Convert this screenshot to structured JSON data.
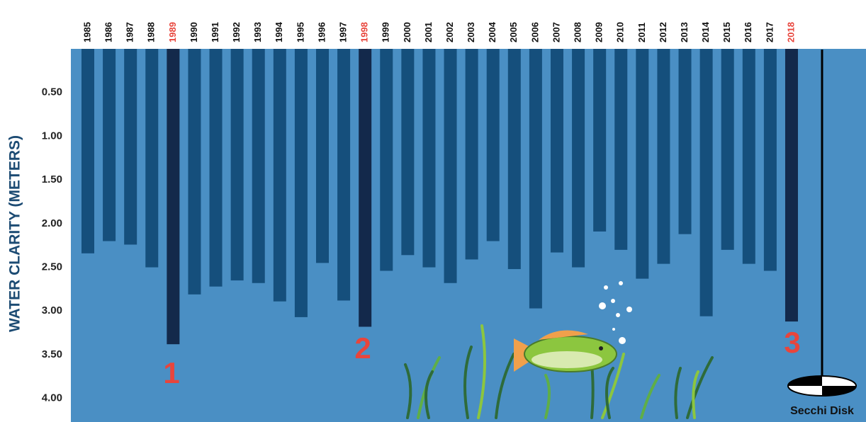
{
  "chart_data": {
    "type": "bar",
    "orientation": "hanging",
    "y_inverted": true,
    "ylabel": "WATER CLARITY (METERS)",
    "categories": [
      "1985",
      "1986",
      "1987",
      "1988",
      "1989",
      "1990",
      "1991",
      "1992",
      "1993",
      "1994",
      "1995",
      "1996",
      "1997",
      "1998",
      "1999",
      "2000",
      "2001",
      "2002",
      "2003",
      "2004",
      "2005",
      "2006",
      "2007",
      "2008",
      "2009",
      "2010",
      "2011",
      "2012",
      "2013",
      "2014",
      "2015",
      "2016",
      "2017",
      "2018"
    ],
    "values": [
      2.34,
      2.2,
      2.24,
      2.5,
      3.38,
      2.81,
      2.72,
      2.65,
      2.68,
      2.89,
      3.07,
      2.45,
      2.88,
      3.18,
      2.54,
      2.36,
      2.5,
      2.68,
      2.41,
      2.2,
      2.52,
      2.97,
      2.33,
      2.5,
      2.09,
      2.3,
      2.63,
      2.46,
      2.12,
      3.06,
      2.3,
      2.46,
      2.54,
      3.12
    ],
    "colors": [
      "#154f7c",
      "#154f7c",
      "#154f7c",
      "#154f7c",
      "#13294b",
      "#154f7c",
      "#154f7c",
      "#154f7c",
      "#154f7c",
      "#154f7c",
      "#154f7c",
      "#154f7c",
      "#154f7c",
      "#13294b",
      "#154f7c",
      "#154f7c",
      "#154f7c",
      "#154f7c",
      "#154f7c",
      "#154f7c",
      "#154f7c",
      "#154f7c",
      "#154f7c",
      "#154f7c",
      "#154f7c",
      "#154f7c",
      "#154f7c",
      "#154f7c",
      "#154f7c",
      "#154f7c",
      "#154f7c",
      "#154f7c",
      "#154f7c",
      "#13294b"
    ],
    "label_colors": [
      "#111",
      "#111",
      "#111",
      "#111",
      "#e8453c",
      "#111",
      "#111",
      "#111",
      "#111",
      "#111",
      "#111",
      "#111",
      "#111",
      "#e8453c",
      "#111",
      "#111",
      "#111",
      "#111",
      "#111",
      "#111",
      "#111",
      "#111",
      "#111",
      "#111",
      "#111",
      "#111",
      "#111",
      "#111",
      "#111",
      "#111",
      "#111",
      "#111",
      "#111",
      "#e8453c"
    ],
    "ylim": [
      0,
      4.27
    ],
    "yticks": [
      {
        "value": 0.5,
        "label": "0.50"
      },
      {
        "value": 1,
        "label": "1.00"
      },
      {
        "value": 1.5,
        "label": "1.50"
      },
      {
        "value": 2,
        "label": "2.00"
      },
      {
        "value": 2.5,
        "label": "2.50"
      },
      {
        "value": 3,
        "label": "3.00"
      },
      {
        "value": 3.5,
        "label": "3.50"
      },
      {
        "value": 4,
        "label": "4.00"
      }
    ],
    "annotations": [
      "1",
      "2",
      "3",
      "Secchi Disk"
    ],
    "background": "#4a8fc4"
  }
}
